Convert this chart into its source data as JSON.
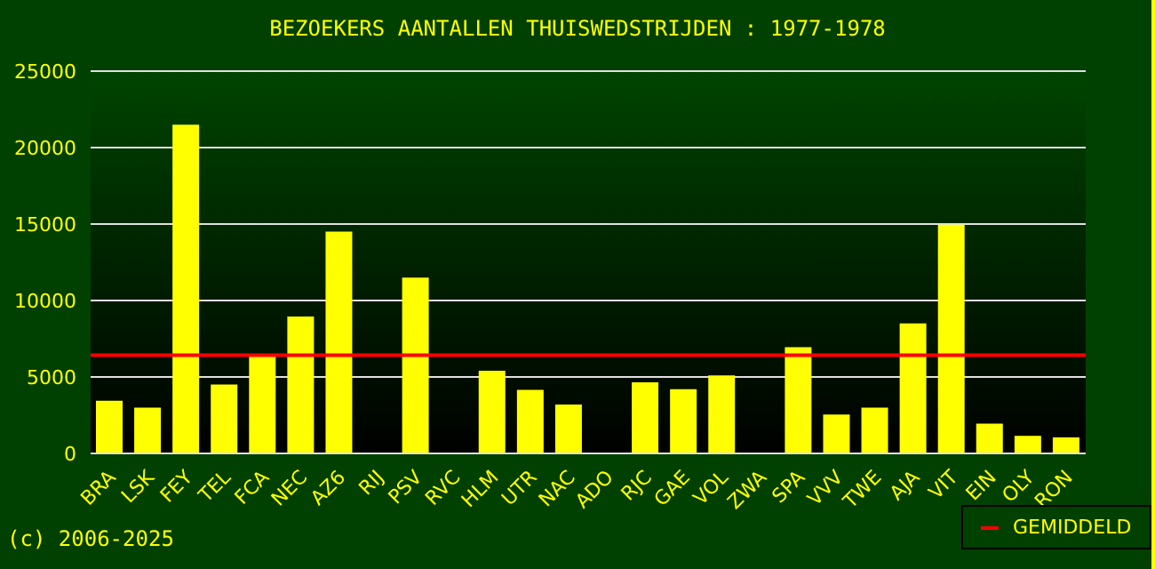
{
  "chart_data": {
    "type": "bar",
    "title": "BEZOEKERS AANTALLEN THUISWEDSTRIJDEN : 1977-1978",
    "categories": [
      "BRA",
      "LSK",
      "FEY",
      "TEL",
      "FCA",
      "NEC",
      "AZ6",
      "RIJ",
      "PSV",
      "RVC",
      "HLM",
      "UTR",
      "NAC",
      "ADO",
      "RJC",
      "GAE",
      "VOL",
      "ZWA",
      "SPA",
      "VVV",
      "TWE",
      "AJA",
      "VIT",
      "EIN",
      "OLY",
      "RON"
    ],
    "values": [
      3450,
      3000,
      21500,
      4500,
      6400,
      8950,
      14500,
      0,
      11500,
      0,
      5400,
      4150,
      3200,
      0,
      4650,
      4200,
      5100,
      0,
      6950,
      2550,
      3000,
      8500,
      14950,
      1950,
      1150,
      1050
    ],
    "color": "#ffff00",
    "ylim": [
      0,
      25000
    ],
    "yticks": [
      0,
      5000,
      10000,
      15000,
      20000,
      25000
    ],
    "grid": "y",
    "ref_lines": [
      {
        "axis": "y",
        "value": 6430,
        "label": "GEMIDDELD",
        "color": "#ff0000"
      }
    ],
    "legend": "bottom right",
    "annotations": [
      "(c) 2006-2025"
    ]
  }
}
